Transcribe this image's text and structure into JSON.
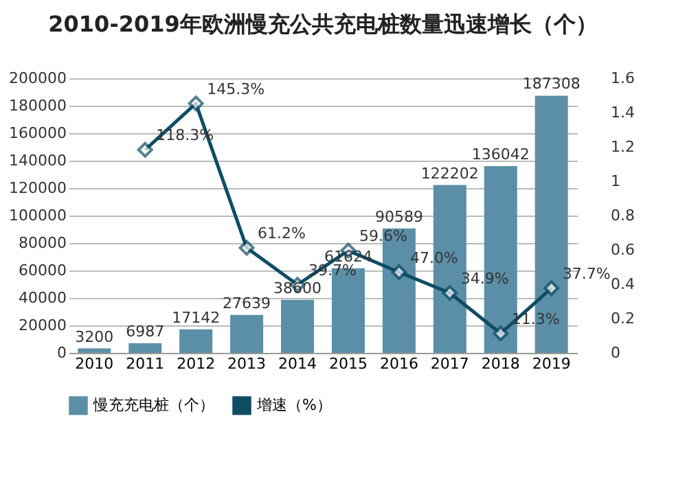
{
  "chart_data": {
    "type": "bar",
    "title": "2010-2019年欧洲慢充公共充电桩数量迅速增长（个）",
    "categories": [
      "2010",
      "2011",
      "2012",
      "2013",
      "2014",
      "2015",
      "2016",
      "2017",
      "2018",
      "2019"
    ],
    "series": [
      {
        "name": "慢充充电桩（个）",
        "type": "bar",
        "color": "#5b8fa8",
        "values": [
          3200,
          6987,
          17142,
          27639,
          38600,
          61624,
          90589,
          122202,
          136042,
          187308
        ],
        "value_labels": [
          "3200",
          "6987",
          "17142",
          "27639",
          "38600",
          "61624",
          "90589",
          "122202",
          "136042",
          "187308"
        ]
      },
      {
        "name": "增速（%）",
        "type": "line",
        "axis": "y2",
        "color": "#0e4d64",
        "marker": "diamond",
        "values": [
          null,
          1.183,
          1.453,
          0.612,
          0.397,
          0.596,
          0.47,
          0.349,
          0.113,
          0.377
        ],
        "value_labels": [
          null,
          "118.3%",
          "145.3%",
          "61.2%",
          "39.7%",
          "59.6%",
          "47.0%",
          "34.9%",
          "11.3%",
          "37.7%"
        ]
      }
    ],
    "ylim": [
      0,
      200000
    ],
    "yticks": [
      0,
      20000,
      40000,
      60000,
      80000,
      100000,
      120000,
      140000,
      160000,
      180000,
      200000
    ],
    "y2lim": [
      0,
      1.6
    ],
    "y2ticks": [
      0,
      0.2,
      0.4,
      0.6,
      0.8,
      1,
      1.2,
      1.4,
      1.6
    ],
    "grid": "y",
    "legend": "bottom"
  }
}
